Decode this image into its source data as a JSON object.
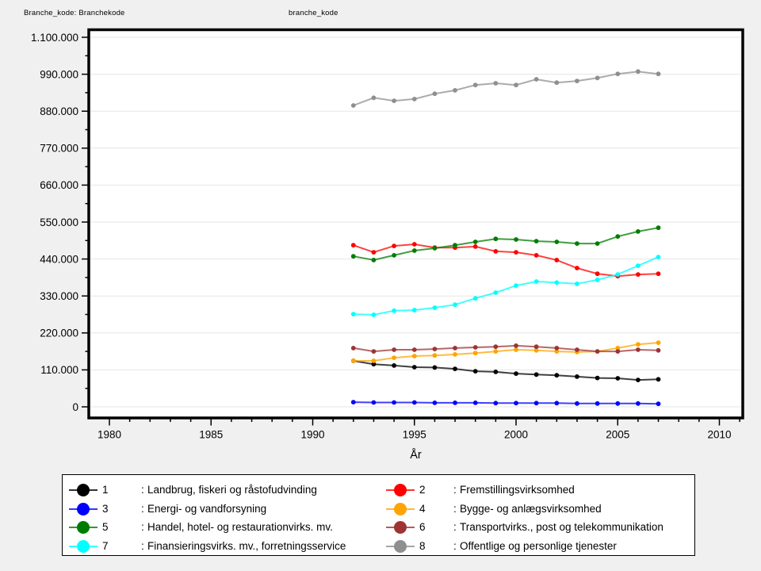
{
  "page": {
    "header_left": "Branche_kode: Branchekode",
    "header_right": "branche_kode",
    "background_color": "#f0f0f0",
    "plot_background_color": "#ffffff"
  },
  "chart_data": {
    "type": "line",
    "xlabel": "År",
    "ylabel": "",
    "x_ticks": [
      1980,
      1985,
      1990,
      1995,
      2000,
      2005,
      2010
    ],
    "x_minor_tick_interval": 1,
    "xlim": [
      1979,
      2011.3
    ],
    "ylim": [
      0,
      1100000
    ],
    "y_tick_interval": 110000,
    "y_tick_labels": [
      "0",
      "110.000",
      "220.000",
      "330.000",
      "440.000",
      "550.000",
      "660.000",
      "770.000",
      "880.000",
      "990.000",
      "1.100.000"
    ],
    "grid": true,
    "legend_position": "bottom-box",
    "legend_separator": ":",
    "legend_columns": [
      [
        "1",
        "3",
        "5",
        "7"
      ],
      [
        "2",
        "4",
        "6",
        "8"
      ]
    ],
    "years": [
      1992,
      1993,
      1994,
      1995,
      1996,
      1997,
      1998,
      1999,
      2000,
      2001,
      2002,
      2003,
      2004,
      2005,
      2006,
      2007
    ],
    "series": [
      {
        "id": "1",
        "label": "Landbrug, fiskeri og råstofudvinding",
        "color": "#000000",
        "values": [
          137000,
          127000,
          123000,
          118000,
          117000,
          113000,
          106000,
          104000,
          99000,
          96000,
          94000,
          90000,
          86000,
          85000,
          80000,
          82000
        ]
      },
      {
        "id": "2",
        "label": "Fremstillingsvirksomhed",
        "color": "#ff0000",
        "values": [
          481000,
          460000,
          479000,
          484000,
          474000,
          474000,
          477000,
          463000,
          460000,
          451000,
          437000,
          413000,
          396000,
          389000,
          394000,
          396000
        ]
      },
      {
        "id": "3",
        "label": "Energi- og vandforsyning",
        "color": "#0000ff",
        "values": [
          14000,
          13000,
          13000,
          13000,
          12000,
          12000,
          12000,
          11000,
          11000,
          11000,
          11000,
          10000,
          10000,
          10000,
          10000,
          9000
        ]
      },
      {
        "id": "4",
        "label": "Bygge- og anlægsvirksomhed",
        "color": "#ffa400",
        "values": [
          137000,
          137000,
          146000,
          151000,
          153000,
          156000,
          160000,
          165000,
          170000,
          168000,
          165000,
          163000,
          165000,
          175000,
          186000,
          191000
        ]
      },
      {
        "id": "5",
        "label": "Handel, hotel- og restaurationvirks. mv.",
        "color": "#007d00",
        "values": [
          448000,
          437000,
          451000,
          465000,
          472000,
          481000,
          491000,
          500000,
          498000,
          493000,
          491000,
          486000,
          486000,
          507000,
          522000,
          533000
        ]
      },
      {
        "id": "6",
        "label": "Transportvirks., post og telekommunikation",
        "color": "#9e3434",
        "values": [
          175000,
          165000,
          170000,
          170000,
          172000,
          175000,
          177000,
          179000,
          182000,
          179000,
          175000,
          170000,
          165000,
          165000,
          170000,
          168000
        ]
      },
      {
        "id": "7",
        "label": "Finansieringsvirks. mv., forretningsservice",
        "color": "#00ffff",
        "values": [
          276000,
          274000,
          286000,
          288000,
          295000,
          304000,
          323000,
          340000,
          361000,
          373000,
          370000,
          366000,
          378000,
          394000,
          420000,
          446000
        ]
      },
      {
        "id": "8",
        "label": "Offentlige og personlige tjenester",
        "color": "#8f8f8f",
        "values": [
          897000,
          920000,
          911000,
          916000,
          932000,
          942000,
          958000,
          963000,
          958000,
          975000,
          965000,
          970000,
          979000,
          991000,
          998000,
          991000
        ]
      }
    ]
  }
}
